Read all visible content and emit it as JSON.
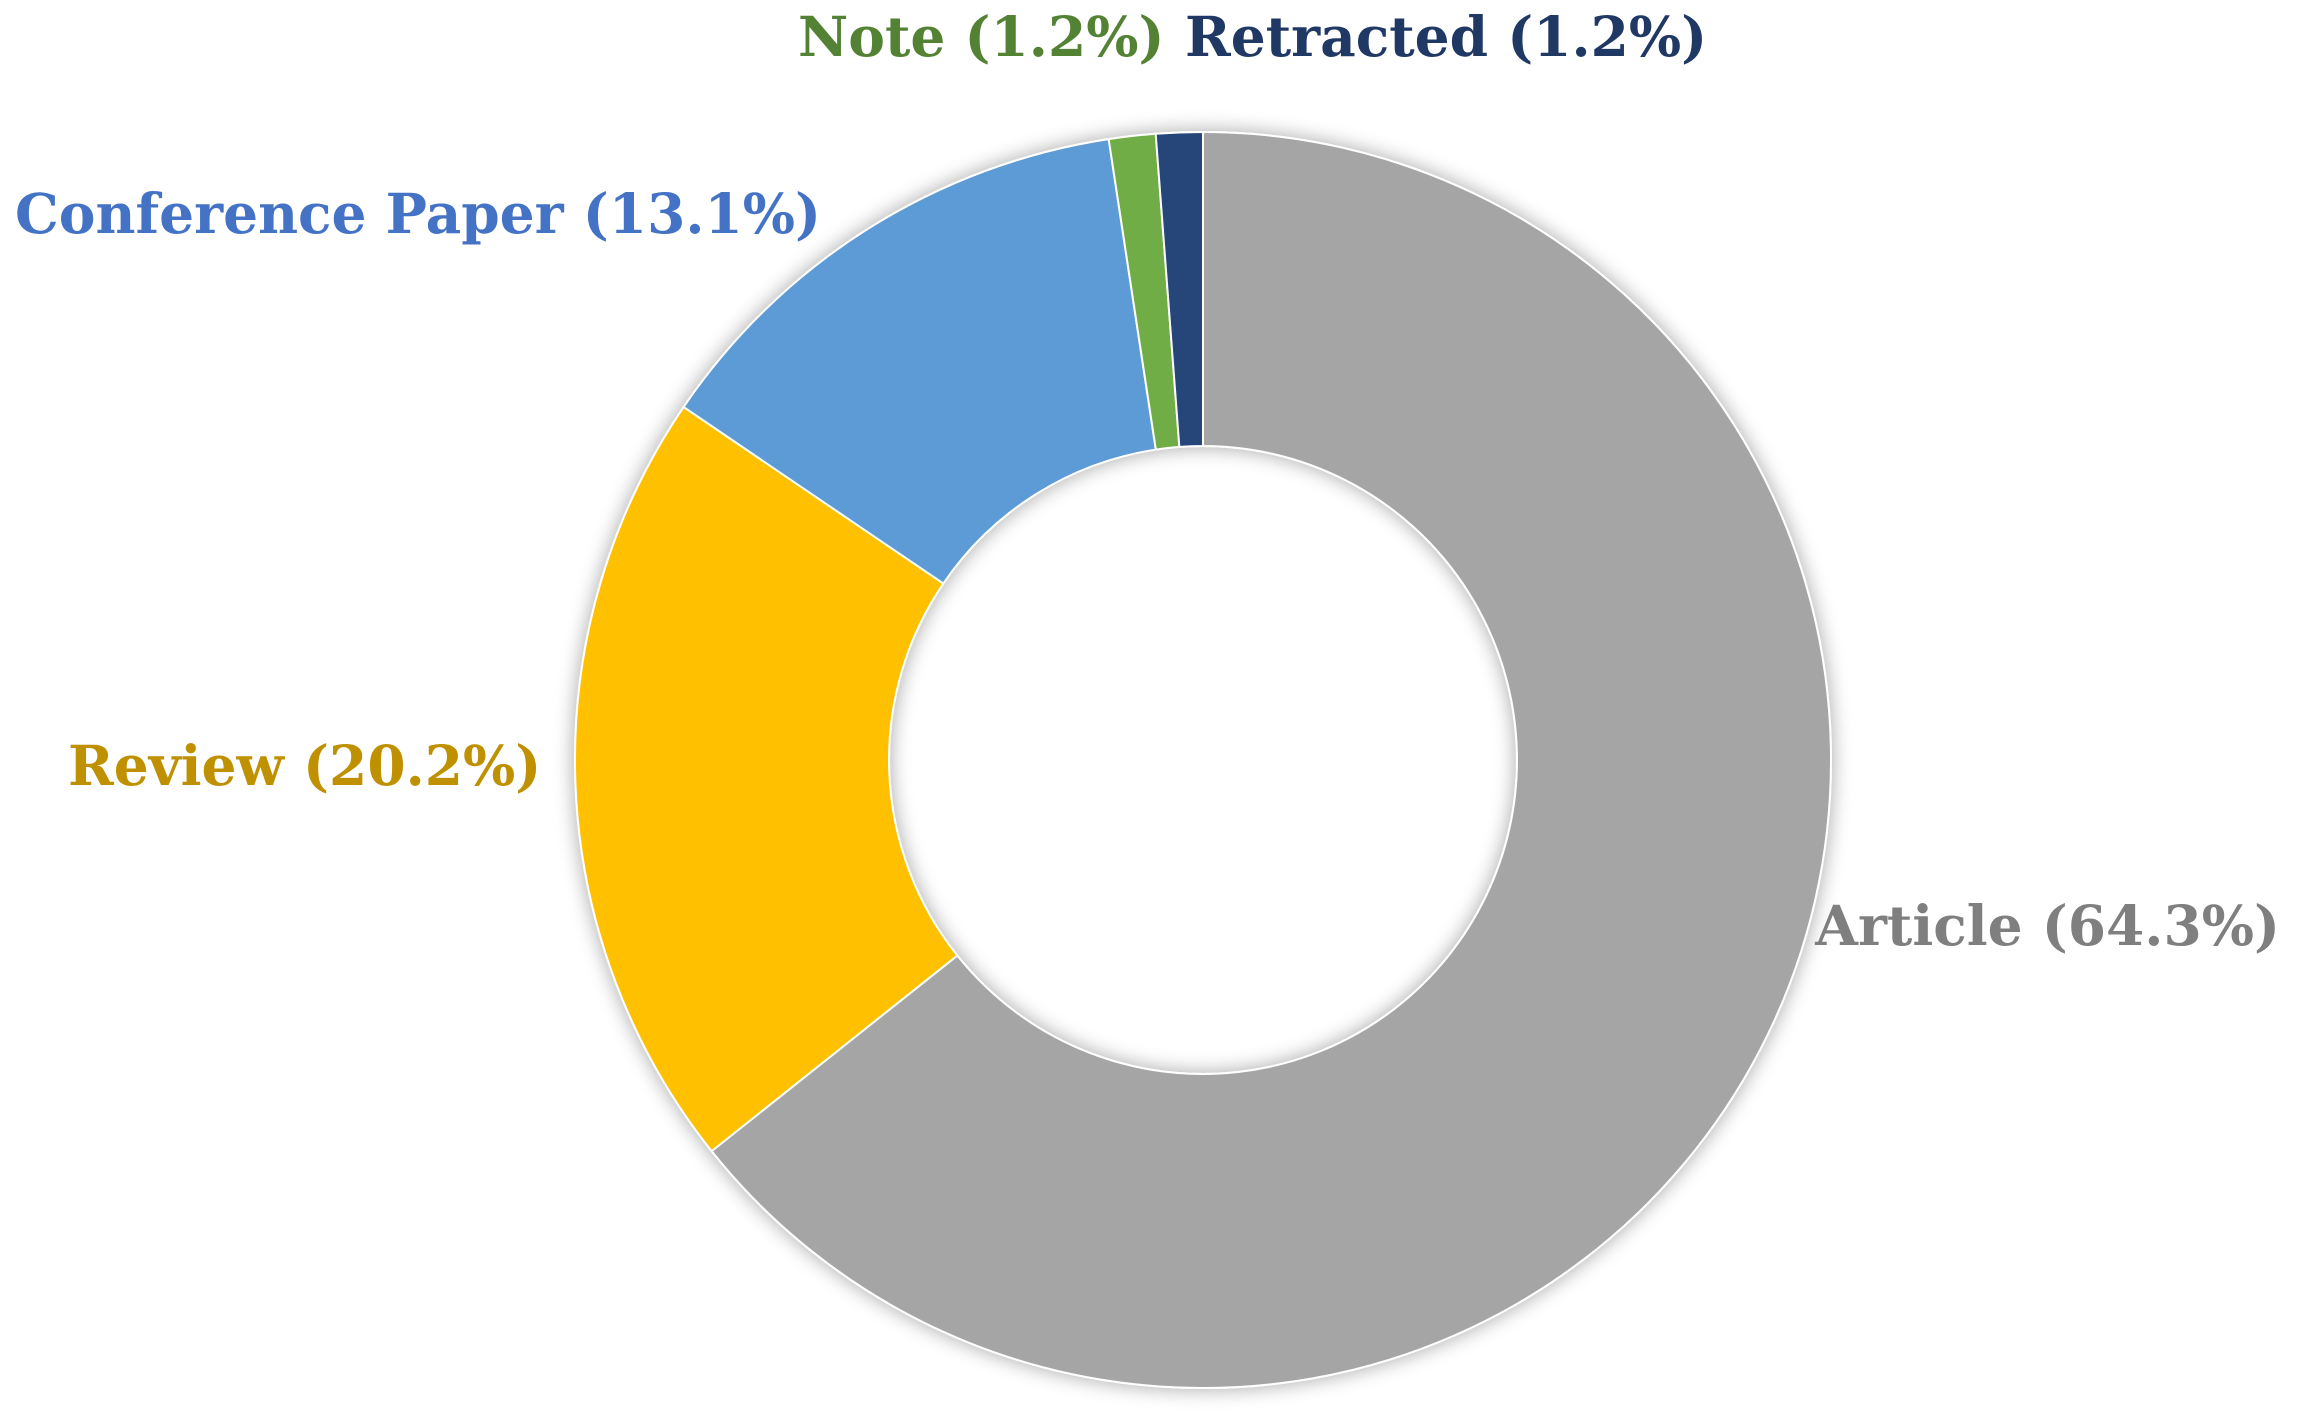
{
  "chart_data": {
    "type": "pie",
    "variant": "donut",
    "title": "",
    "start_angle_deg": 0,
    "direction": "clockwise",
    "slices": [
      {
        "name": "Article",
        "value": 64.3,
        "label": "Article (64.3%)",
        "color": "#a5a5a5",
        "label_color": "#7f7f7f"
      },
      {
        "name": "Review",
        "value": 20.2,
        "label": "Review (20.2%)",
        "color": "#ffc000",
        "label_color": "#bf9000"
      },
      {
        "name": "Conference Paper",
        "value": 13.1,
        "label": "Conference Paper (13.1%)",
        "color": "#5b9bd5",
        "label_color": "#4472c4"
      },
      {
        "name": "Note",
        "value": 1.2,
        "label": "Note (1.2%)",
        "color": "#70ad47",
        "label_color": "#548235"
      },
      {
        "name": "Retracted",
        "value": 1.2,
        "label": "Retracted (1.2%)",
        "color": "#264478",
        "label_color": "#1f3864"
      }
    ],
    "legend": "none",
    "data_labels": "outside"
  }
}
